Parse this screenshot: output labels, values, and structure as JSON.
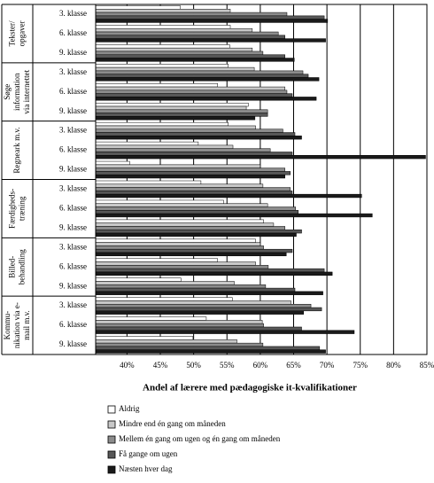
{
  "chart_data": {
    "type": "grouped-hbar",
    "xlabel": "Andel af lærere med pædagogiske it-kvalifikationer",
    "groups": [
      {
        "lines": [
          "Tekster/",
          "opgaver"
        ]
      },
      {
        "lines": [
          "Søge",
          "information",
          "via internettet"
        ]
      },
      {
        "lines": [
          "Regneark m.v."
        ]
      },
      {
        "lines": [
          "Færdigheds-",
          "træning"
        ]
      },
      {
        "lines": [
          "Billed-",
          "behandling"
        ]
      },
      {
        "lines": [
          "Kommu-",
          "nikation via e-",
          "mail m.v."
        ]
      }
    ],
    "categories": [
      "3. klasse",
      "6. klasse",
      "9. klasse",
      "3. klasse",
      "6. klasse",
      "9. klasse",
      "3. klasse",
      "6. klasse",
      "9. klasse",
      "3. klasse",
      "6. klasse",
      "9. klasse",
      "3. klasse",
      "6. klasse",
      "9. klasse",
      "3. klasse",
      "6. klasse",
      "9. klasse"
    ],
    "series": [
      {
        "name": "Aldrig",
        "color": "#ffffff",
        "values": [
          48.0,
          55.5,
          55.4,
          55.2,
          53.6,
          58.2,
          55.2,
          50.7,
          40.4,
          51.1,
          54.5,
          60.5,
          59.3,
          53.6,
          48.1,
          55.8,
          51.9,
          49.9
        ]
      },
      {
        "name": "Mindre end én gang om måneden",
        "color": "#c8c8c8",
        "values": [
          55.5,
          58.8,
          58.8,
          59.1,
          63.7,
          57.9,
          59.3,
          55.9,
          60.0,
          60.4,
          61.1,
          62.0,
          60.0,
          59.3,
          56.1,
          64.6,
          60.3,
          56.5
        ]
      },
      {
        "name": "Mellem én gang om ugen og én gang om måneden",
        "color": "#8c8c8c",
        "values": [
          64.0,
          62.7,
          60.4,
          66.4,
          64.0,
          61.1,
          63.4,
          61.5,
          63.7,
          64.5,
          65.3,
          63.7,
          60.5,
          61.2,
          60.8,
          67.6,
          60.5,
          60.4
        ]
      },
      {
        "name": "Få gange om ugen",
        "color": "#575757",
        "values": [
          69.6,
          63.7,
          63.7,
          67.2,
          64.8,
          61.1,
          65.2,
          64.8,
          64.5,
          64.8,
          65.7,
          66.2,
          64.8,
          69.6,
          65.2,
          69.2,
          66.2,
          68.9
        ]
      },
      {
        "name": "Næsten hver dag",
        "color": "#1a1a1a",
        "values": [
          70.1,
          69.8,
          65.1,
          68.8,
          68.4,
          59.2,
          66.2,
          84.8,
          63.7,
          75.2,
          76.8,
          65.4,
          63.9,
          70.8,
          69.4,
          66.5,
          74.1,
          69.8
        ]
      }
    ],
    "xlim": [
      35.3,
      85
    ],
    "xticks": [
      {
        "value": 40,
        "label": "40%"
      },
      {
        "value": 45,
        "label": "45%"
      },
      {
        "value": 50,
        "label": "50%"
      },
      {
        "value": 55,
        "label": "55%"
      },
      {
        "value": 60,
        "label": "60%"
      },
      {
        "value": 65,
        "label": "65%"
      },
      {
        "value": 70,
        "label": "70%"
      },
      {
        "value": 75,
        "label": "75%"
      },
      {
        "value": 80,
        "label": "80%"
      },
      {
        "value": 85,
        "label": "85%"
      }
    ],
    "grid": true
  }
}
